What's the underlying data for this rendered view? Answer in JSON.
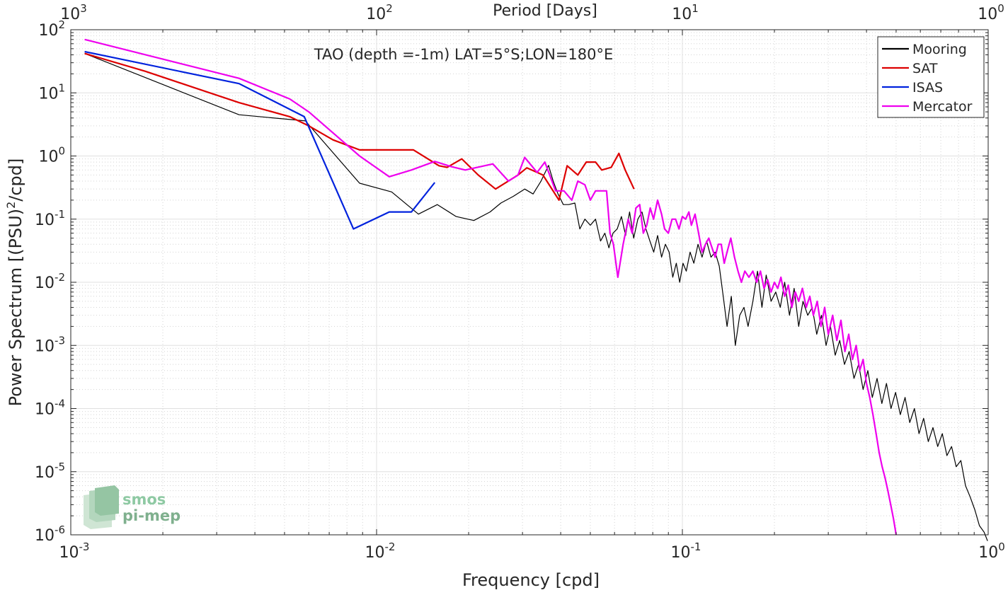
{
  "chart_data": {
    "type": "line",
    "title": "TAO (depth =-1m) LAT=5°S;LON=180°E",
    "xlabel": "Frequency [cpd]",
    "ylabel": "Power Spectrum [(PSU)²/cpd]",
    "ylabel_main": "Power Spectrum [(PSU)",
    "ylabel_sup": "2",
    "ylabel_tail": "/cpd]",
    "top_xlabel": "Period [Days]",
    "xscale": "log",
    "yscale": "log",
    "xlim": [
      0.001,
      1
    ],
    "ylim": [
      1e-06,
      100
    ],
    "grid": true,
    "legend_position": "top-right",
    "x_ticks": [
      {
        "value": 0.001,
        "base": "10",
        "exp": "-3"
      },
      {
        "value": 0.01,
        "base": "10",
        "exp": "-2"
      },
      {
        "value": 0.1,
        "base": "10",
        "exp": "-1"
      },
      {
        "value": 1,
        "base": "10",
        "exp": "0"
      }
    ],
    "top_ticks": [
      {
        "freq": 0.001,
        "base": "10",
        "exp": "3"
      },
      {
        "freq": 0.01,
        "base": "10",
        "exp": "2"
      },
      {
        "freq": 0.1,
        "base": "10",
        "exp": "1"
      },
      {
        "freq": 1,
        "base": "10",
        "exp": "0"
      }
    ],
    "y_ticks": [
      {
        "value": 100,
        "base": "10",
        "exp": "2"
      },
      {
        "value": 10,
        "base": "10",
        "exp": "1"
      },
      {
        "value": 1,
        "base": "10",
        "exp": "0"
      },
      {
        "value": 0.1,
        "base": "10",
        "exp": "-1"
      },
      {
        "value": 0.01,
        "base": "10",
        "exp": "-2"
      },
      {
        "value": 0.001,
        "base": "10",
        "exp": "-3"
      },
      {
        "value": 0.0001,
        "base": "10",
        "exp": "-4"
      },
      {
        "value": 1e-05,
        "base": "10",
        "exp": "-5"
      },
      {
        "value": 1e-06,
        "base": "10",
        "exp": "-6"
      }
    ],
    "series": [
      {
        "name": "Mooring",
        "color": "#000000",
        "width": 1.2,
        "points": [
          [
            0.00111,
            42
          ],
          [
            0.00355,
            4.5
          ],
          [
            0.00585,
            3.6
          ],
          [
            0.0088,
            0.37
          ],
          [
            0.0112,
            0.27
          ],
          [
            0.0137,
            0.12
          ],
          [
            0.0158,
            0.17
          ],
          [
            0.0182,
            0.11
          ],
          [
            0.0208,
            0.095
          ],
          [
            0.0235,
            0.13
          ],
          [
            0.0255,
            0.18
          ],
          [
            0.028,
            0.23
          ],
          [
            0.0305,
            0.3
          ],
          [
            0.0325,
            0.25
          ],
          [
            0.0345,
            0.4
          ],
          [
            0.0365,
            0.71
          ],
          [
            0.0378,
            0.4
          ],
          [
            0.0392,
            0.25
          ],
          [
            0.0408,
            0.17
          ],
          [
            0.0425,
            0.17
          ],
          [
            0.0445,
            0.18
          ],
          [
            0.0462,
            0.07
          ],
          [
            0.048,
            0.1
          ],
          [
            0.05,
            0.08
          ],
          [
            0.052,
            0.1
          ],
          [
            0.054,
            0.045
          ],
          [
            0.0558,
            0.06
          ],
          [
            0.0575,
            0.035
          ],
          [
            0.0593,
            0.06
          ],
          [
            0.0612,
            0.07
          ],
          [
            0.0632,
            0.11
          ],
          [
            0.0652,
            0.055
          ],
          [
            0.0672,
            0.13
          ],
          [
            0.0693,
            0.05
          ],
          [
            0.0715,
            0.1
          ],
          [
            0.0738,
            0.13
          ],
          [
            0.076,
            0.07
          ],
          [
            0.0783,
            0.045
          ],
          [
            0.0806,
            0.03
          ],
          [
            0.083,
            0.055
          ],
          [
            0.0855,
            0.025
          ],
          [
            0.088,
            0.04
          ],
          [
            0.0905,
            0.03
          ],
          [
            0.093,
            0.012
          ],
          [
            0.0955,
            0.02
          ],
          [
            0.098,
            0.01
          ],
          [
            0.1005,
            0.02
          ],
          [
            0.103,
            0.015
          ],
          [
            0.106,
            0.03
          ],
          [
            0.109,
            0.02
          ],
          [
            0.1125,
            0.04
          ],
          [
            0.116,
            0.025
          ],
          [
            0.12,
            0.045
          ],
          [
            0.124,
            0.025
          ],
          [
            0.128,
            0.03
          ],
          [
            0.132,
            0.018
          ],
          [
            0.136,
            0.006
          ],
          [
            0.14,
            0.002
          ],
          [
            0.1445,
            0.006
          ],
          [
            0.149,
            0.001
          ],
          [
            0.154,
            0.003
          ],
          [
            0.159,
            0.004
          ],
          [
            0.164,
            0.002
          ],
          [
            0.17,
            0.005
          ],
          [
            0.176,
            0.015
          ],
          [
            0.182,
            0.004
          ],
          [
            0.188,
            0.013
          ],
          [
            0.195,
            0.005
          ],
          [
            0.202,
            0.007
          ],
          [
            0.209,
            0.004
          ],
          [
            0.216,
            0.01
          ],
          [
            0.224,
            0.003
          ],
          [
            0.232,
            0.008
          ],
          [
            0.24,
            0.002
          ],
          [
            0.248,
            0.005
          ],
          [
            0.257,
            0.003
          ],
          [
            0.266,
            0.004
          ],
          [
            0.275,
            0.0015
          ],
          [
            0.285,
            0.003
          ],
          [
            0.295,
            0.001
          ],
          [
            0.305,
            0.002
          ],
          [
            0.316,
            0.0007
          ],
          [
            0.327,
            0.0012
          ],
          [
            0.339,
            0.0005
          ],
          [
            0.351,
            0.0008
          ],
          [
            0.364,
            0.0003
          ],
          [
            0.377,
            0.0005
          ],
          [
            0.39,
            0.0002
          ],
          [
            0.404,
            0.0004
          ],
          [
            0.418,
            0.00015
          ],
          [
            0.433,
            0.0003
          ],
          [
            0.449,
            0.00012
          ],
          [
            0.465,
            0.00025
          ],
          [
            0.481,
            0.0001
          ],
          [
            0.498,
            0.00018
          ],
          [
            0.516,
            8e-05
          ],
          [
            0.535,
            0.00015
          ],
          [
            0.554,
            6e-05
          ],
          [
            0.574,
            0.0001
          ],
          [
            0.594,
            4e-05
          ],
          [
            0.615,
            7e-05
          ],
          [
            0.637,
            3e-05
          ],
          [
            0.66,
            5e-05
          ],
          [
            0.684,
            2.5e-05
          ],
          [
            0.708,
            4e-05
          ],
          [
            0.733,
            1.8e-05
          ],
          [
            0.759,
            2.5e-05
          ],
          [
            0.786,
            1.2e-05
          ],
          [
            0.814,
            1.5e-05
          ],
          [
            0.843,
            6e-06
          ],
          [
            0.873,
            4e-06
          ],
          [
            0.904,
            2.5e-06
          ],
          [
            0.936,
            1.4e-06
          ],
          [
            0.97,
            1.1e-06
          ],
          [
            0.995,
            8e-07
          ]
        ]
      },
      {
        "name": "SAT",
        "color": "#dd0000",
        "width": 2.2,
        "points": [
          [
            0.00111,
            42
          ],
          [
            0.00175,
            22
          ],
          [
            0.00355,
            7.0
          ],
          [
            0.0052,
            4.2
          ],
          [
            0.006,
            3.0
          ],
          [
            0.0072,
            1.8
          ],
          [
            0.0088,
            1.25
          ],
          [
            0.01,
            1.25
          ],
          [
            0.012,
            1.25
          ],
          [
            0.0132,
            1.25
          ],
          [
            0.016,
            0.7
          ],
          [
            0.017,
            0.66
          ],
          [
            0.019,
            0.9
          ],
          [
            0.0215,
            0.5
          ],
          [
            0.0245,
            0.3
          ],
          [
            0.029,
            0.5
          ],
          [
            0.031,
            0.65
          ],
          [
            0.035,
            0.5
          ],
          [
            0.0395,
            0.2
          ],
          [
            0.042,
            0.7
          ],
          [
            0.0455,
            0.5
          ],
          [
            0.0485,
            0.8
          ],
          [
            0.052,
            0.8
          ],
          [
            0.0545,
            0.6
          ],
          [
            0.0585,
            0.66
          ],
          [
            0.062,
            1.1
          ],
          [
            0.065,
            0.6
          ],
          [
            0.0695,
            0.3
          ]
        ]
      },
      {
        "name": "ISAS",
        "color": "#0022dd",
        "width": 2.2,
        "points": [
          [
            0.00111,
            45
          ],
          [
            0.00355,
            14
          ],
          [
            0.0058,
            4.2
          ],
          [
            0.0084,
            0.07
          ],
          [
            0.011,
            0.13
          ],
          [
            0.013,
            0.13
          ],
          [
            0.0155,
            0.38
          ]
        ]
      },
      {
        "name": "Mercator",
        "color": "#ee00ee",
        "width": 2.2,
        "points": [
          [
            0.00111,
            70
          ],
          [
            0.00355,
            17
          ],
          [
            0.0052,
            8
          ],
          [
            0.006,
            5
          ],
          [
            0.0088,
            1.0
          ],
          [
            0.011,
            0.47
          ],
          [
            0.013,
            0.6
          ],
          [
            0.0155,
            0.82
          ],
          [
            0.0175,
            0.68
          ],
          [
            0.0195,
            0.6
          ],
          [
            0.024,
            0.75
          ],
          [
            0.027,
            0.4
          ],
          [
            0.029,
            0.5
          ],
          [
            0.0305,
            0.95
          ],
          [
            0.0335,
            0.55
          ],
          [
            0.0355,
            0.8
          ],
          [
            0.0385,
            0.28
          ],
          [
            0.041,
            0.28
          ],
          [
            0.0435,
            0.2
          ],
          [
            0.0455,
            0.4
          ],
          [
            0.048,
            0.35
          ],
          [
            0.05,
            0.2
          ],
          [
            0.052,
            0.28
          ],
          [
            0.054,
            0.28
          ],
          [
            0.0565,
            0.28
          ],
          [
            0.058,
            0.06
          ],
          [
            0.0595,
            0.04
          ],
          [
            0.0615,
            0.012
          ],
          [
            0.064,
            0.04
          ],
          [
            0.0665,
            0.1
          ],
          [
            0.0685,
            0.06
          ],
          [
            0.0705,
            0.15
          ],
          [
            0.0725,
            0.17
          ],
          [
            0.0745,
            0.06
          ],
          [
            0.0765,
            0.08
          ],
          [
            0.0785,
            0.15
          ],
          [
            0.0805,
            0.1
          ],
          [
            0.083,
            0.2
          ],
          [
            0.0855,
            0.12
          ],
          [
            0.0875,
            0.07
          ],
          [
            0.09,
            0.06
          ],
          [
            0.0925,
            0.1
          ],
          [
            0.095,
            0.1
          ],
          [
            0.0975,
            0.07
          ],
          [
            0.1,
            0.11
          ],
          [
            0.1025,
            0.1
          ],
          [
            0.105,
            0.13
          ],
          [
            0.107,
            0.08
          ],
          [
            0.11,
            0.12
          ],
          [
            0.113,
            0.06
          ],
          [
            0.116,
            0.03
          ],
          [
            0.119,
            0.04
          ],
          [
            0.122,
            0.05
          ],
          [
            0.125,
            0.035
          ],
          [
            0.128,
            0.025
          ],
          [
            0.131,
            0.04
          ],
          [
            0.134,
            0.04
          ],
          [
            0.137,
            0.02
          ],
          [
            0.14,
            0.03
          ],
          [
            0.144,
            0.05
          ],
          [
            0.148,
            0.025
          ],
          [
            0.152,
            0.015
          ],
          [
            0.156,
            0.01
          ],
          [
            0.16,
            0.015
          ],
          [
            0.165,
            0.012
          ],
          [
            0.17,
            0.015
          ],
          [
            0.175,
            0.01
          ],
          [
            0.18,
            0.015
          ],
          [
            0.185,
            0.008
          ],
          [
            0.19,
            0.011
          ],
          [
            0.195,
            0.007
          ],
          [
            0.2,
            0.01
          ],
          [
            0.205,
            0.008
          ],
          [
            0.21,
            0.012
          ],
          [
            0.216,
            0.006
          ],
          [
            0.222,
            0.009
          ],
          [
            0.228,
            0.004
          ],
          [
            0.234,
            0.007
          ],
          [
            0.24,
            0.005
          ],
          [
            0.247,
            0.008
          ],
          [
            0.254,
            0.004
          ],
          [
            0.261,
            0.006
          ],
          [
            0.268,
            0.003
          ],
          [
            0.276,
            0.005
          ],
          [
            0.284,
            0.002
          ],
          [
            0.292,
            0.004
          ],
          [
            0.3,
            0.0015
          ],
          [
            0.31,
            0.003
          ],
          [
            0.32,
            0.0012
          ],
          [
            0.33,
            0.0025
          ],
          [
            0.34,
            0.0008
          ],
          [
            0.35,
            0.0015
          ],
          [
            0.36,
            0.0006
          ],
          [
            0.37,
            0.001
          ],
          [
            0.38,
            0.0004
          ],
          [
            0.39,
            0.0006
          ],
          [
            0.4,
            0.00025
          ],
          [
            0.41,
            0.00015
          ],
          [
            0.42,
            8e-05
          ],
          [
            0.43,
            4e-05
          ],
          [
            0.44,
            2e-05
          ],
          [
            0.45,
            1.2e-05
          ],
          [
            0.46,
            8e-06
          ],
          [
            0.47,
            5e-06
          ],
          [
            0.48,
            3e-06
          ],
          [
            0.49,
            1.8e-06
          ],
          [
            0.5,
            1e-06
          ]
        ]
      }
    ]
  },
  "logo": {
    "line1": "smos",
    "line2": "pi-mep"
  }
}
